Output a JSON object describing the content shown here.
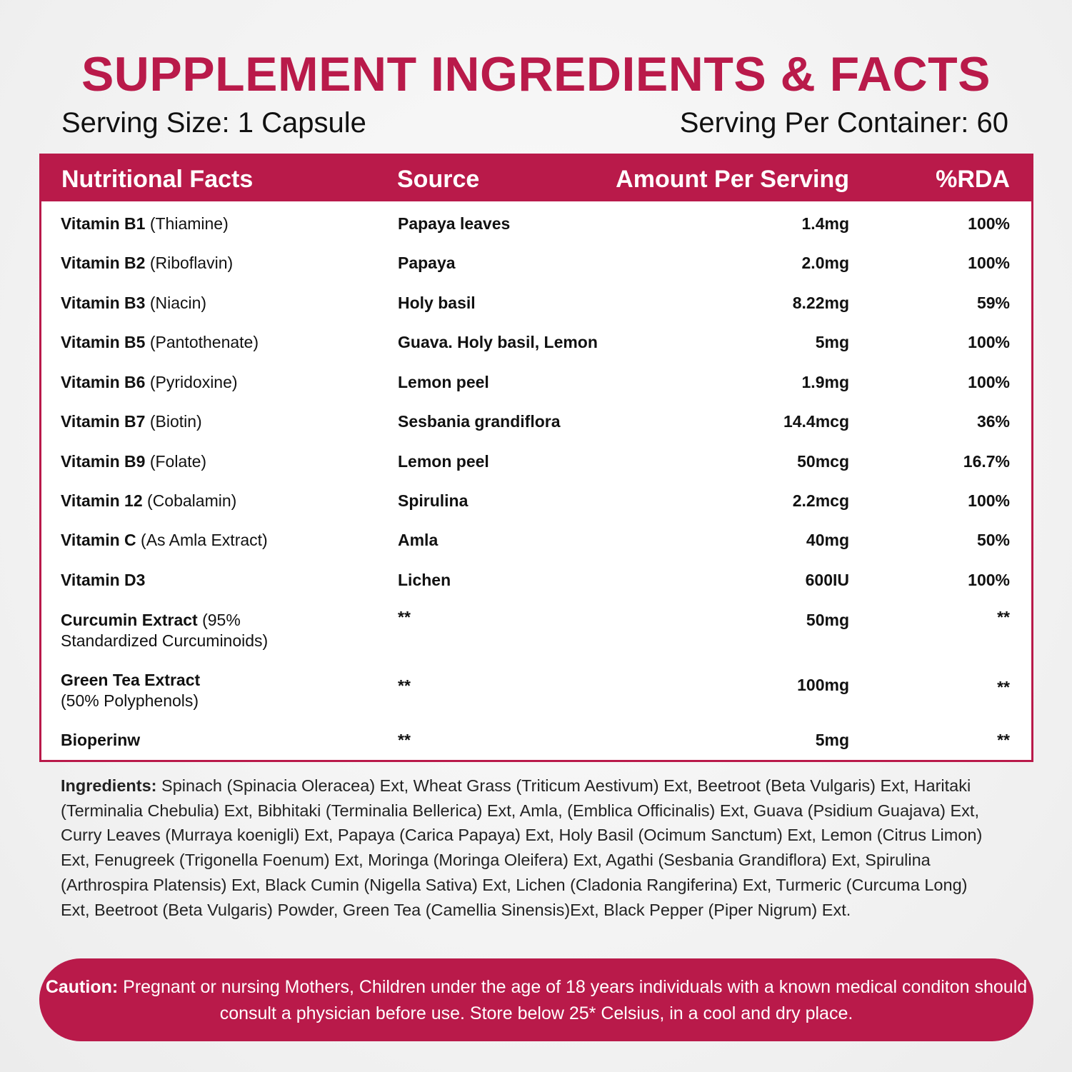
{
  "title": "SUPPLEMENT INGREDIENTS & FACTS",
  "serving_size": "Serving Size: 1 Capsule",
  "serving_per_container": "Serving Per Container: 60",
  "brand_color": "#b91a4a",
  "table": {
    "headers": [
      "Nutritional Facts",
      "Source",
      "Amount Per Serving",
      "%RDA"
    ],
    "rows": [
      {
        "name": "Vitamin B1",
        "detail": "(Thiamine)",
        "source": "Papaya leaves",
        "amount": "1.4mg",
        "rda": "100%"
      },
      {
        "name": "Vitamin B2",
        "detail": "(Riboflavin)",
        "source": "Papaya",
        "amount": "2.0mg",
        "rda": "100%"
      },
      {
        "name": "Vitamin B3",
        "detail": "(Niacin)",
        "source": "Holy basil",
        "amount": "8.22mg",
        "rda": "59%"
      },
      {
        "name": "Vitamin B5",
        "detail": "(Pantothenate)",
        "source": "Guava. Holy basil, Lemon",
        "amount": "5mg",
        "rda": "100%"
      },
      {
        "name": "Vitamin B6",
        "detail": "(Pyridoxine)",
        "source": "Lemon peel",
        "amount": "1.9mg",
        "rda": "100%"
      },
      {
        "name": "Vitamin B7",
        "detail": "(Biotin)",
        "source": "Sesbania grandiflora",
        "amount": "14.4mcg",
        "rda": "36%"
      },
      {
        "name": "Vitamin B9",
        "detail": "(Folate)",
        "source": "Lemon peel",
        "amount": "50mcg",
        "rda": "16.7%"
      },
      {
        "name": "Vitamin 12",
        "detail": "(Cobalamin)",
        "source": "Spirulina",
        "amount": "2.2mcg",
        "rda": "100%"
      },
      {
        "name": "Vitamin C",
        "detail": "(As Amla Extract)",
        "source": "Amla",
        "amount": "40mg",
        "rda": "50%"
      },
      {
        "name": "Vitamin D3",
        "detail": "",
        "source": "Lichen",
        "amount": "600IU",
        "rda": "100%"
      },
      {
        "name": "Curcumin Extract",
        "detail": "(95%",
        "detail2": "Standardized Curcuminoids)",
        "source": "**",
        "amount": "50mg",
        "rda": "**"
      },
      {
        "name": "Green Tea Extract",
        "detail": "",
        "detail2": "(50% Polyphenols)",
        "source": "**",
        "amount": "100mg",
        "rda": "**"
      },
      {
        "name": "Bioperinw",
        "detail": "",
        "source": "**",
        "amount": "5mg",
        "rda": "**"
      }
    ]
  },
  "ingredients": {
    "label": "Ingredients:",
    "text": " Spinach (Spinacia Oleracea) Ext, Wheat Grass (Triticum Aestivum) Ext, Beetroot (Beta Vulgaris) Ext, Haritaki (Terminalia Chebulia) Ext, Bibhitaki (Terminalia Bellerica) Ext, Amla, (Emblica Officinalis) Ext, Guava (Psidium Guajava) Ext, Curry Leaves (Murraya koenigli) Ext, Papaya (Carica Papaya) Ext, Holy Basil (Ocimum Sanctum) Ext, Lemon (Citrus Limon) Ext, Fenugreek (Trigonella Foenum) Ext, Moringa (Moringa Oleifera) Ext, Agathi (Sesbania Grandiflora) Ext, Spirulina (Arthrospira Platensis) Ext, Black Cumin (Nigella Sativa) Ext, Lichen (Cladonia Rangiferina) Ext, Turmeric (Curcuma Long) Ext, Beetroot (Beta Vulgaris) Powder, Green Tea (Camellia Sinensis)Ext, Black Pepper (Piper Nigrum) Ext."
  },
  "caution": {
    "label": "Caution:",
    "text": " Pregnant or nursing Mothers, Children under the age of 18 years individuals with a known medical conditon should consult a physician before use. Store below 25* Celsius, in a cool and dry place."
  }
}
